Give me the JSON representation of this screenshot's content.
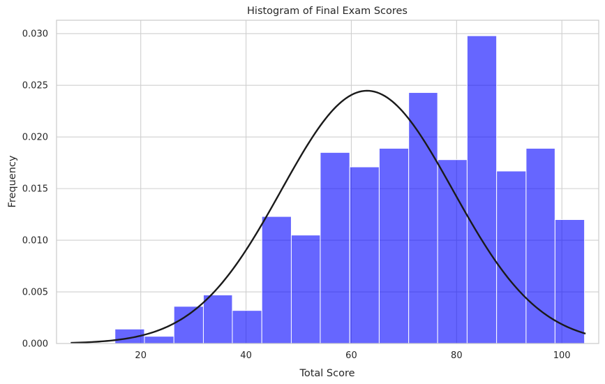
{
  "chart_data": {
    "type": "bar",
    "title": "Histogram of Final Exam Scores",
    "xlabel": "Total Score",
    "ylabel": "Frequency",
    "xlim": [
      4.0,
      107.0
    ],
    "ylim": [
      0.0,
      0.0313
    ],
    "xticks": [
      20,
      40,
      60,
      80,
      100
    ],
    "yticks": [
      0.0,
      0.005,
      0.01,
      0.015,
      0.02,
      0.025,
      0.03
    ],
    "ytick_labels": [
      "0.000",
      "0.005",
      "0.010",
      "0.015",
      "0.020",
      "0.025",
      "0.030"
    ],
    "grid": true,
    "histogram": {
      "bin_edges": [
        15.1,
        18.8,
        21.1,
        24.2,
        26.7,
        29.0,
        30.5,
        33.5,
        35.6,
        39.6,
        40.5,
        45.0,
        46.5,
        50.6,
        52.0,
        55.8,
        57.2,
        60.5,
        62.0,
        66.0,
        67.0,
        70.5,
        72.0,
        77.0,
        78.0,
        81.0,
        82.5,
        86.0,
        87.5,
        90.5,
        92.0,
        96.0,
        100.0
      ],
      "edges": [
        15.1,
        18.8,
        24.3,
        26.6,
        30.5,
        33.1,
        35.0,
        37.9,
        42.0,
        44.4,
        49.2,
        51.0,
        56.4,
        59.6,
        63.0,
        67.5,
        70.0,
        76.1,
        77.8,
        82.3,
        85.3,
        88.4,
        95.8,
        100.0
      ],
      "bin_left_edges": [
        15.2,
        21.2,
        26.7,
        32.3,
        37.9,
        43.4,
        49.0,
        54.6,
        60.1,
        65.7,
        71.2,
        76.8,
        82.4,
        87.9,
        93.5,
        99.1
      ],
      "bins": [
        {
          "from": 15.2,
          "to": 20.8,
          "density": 0.0014
        },
        {
          "from": 20.8,
          "to": 26.3,
          "density": 0.0007
        },
        {
          "from": 26.3,
          "to": 31.9,
          "density": 0.0036
        },
        {
          "from": 31.9,
          "to": 37.4,
          "density": 0.0047
        },
        {
          "from": 37.4,
          "to": 43.0,
          "density": 0.0032
        },
        {
          "from": 43.0,
          "to": 48.5,
          "density": 0.0123
        },
        {
          "from": 48.5,
          "to": 54.1,
          "density": 0.0105
        },
        {
          "from": 54.1,
          "to": 59.6,
          "density": 0.0185
        },
        {
          "from": 59.6,
          "to": 65.2,
          "density": 0.0171
        },
        {
          "from": 65.2,
          "to": 70.7,
          "density": 0.0189
        },
        {
          "from": 70.7,
          "to": 76.3,
          "density": 0.0243
        },
        {
          "from": 76.3,
          "to": 81.8,
          "density": 0.0178
        },
        {
          "from": 81.8,
          "to": 87.4,
          "density": 0.0298
        },
        {
          "from": 87.4,
          "to": 92.9,
          "density": 0.0167
        },
        {
          "from": 92.9,
          "to": 98.5,
          "density": 0.0189
        },
        {
          "from": 98.5,
          "to": 104.0,
          "density": 0.012
        }
      ],
      "counts_note": ""
    },
    "bars": [
      {
        "x0": 15.1,
        "x1": 20.7,
        "value": 0.0014
      },
      {
        "x0": 20.7,
        "x1": 26.3,
        "value": 0.0007
      },
      {
        "x0": 26.3,
        "x1": 31.9,
        "value": 0.0036
      },
      {
        "x0": 31.9,
        "x1": 37.4,
        "value": 0.0047
      },
      {
        "x0": 37.4,
        "x1": 43.0,
        "value": 0.0032
      },
      {
        "x0": 43.0,
        "x1": 48.6,
        "value": 0.0123
      },
      {
        "x0": 48.6,
        "x1": 54.1,
        "value": 0.0105
      },
      {
        "x0": 54.1,
        "x1": 59.7,
        "value": 0.0185
      },
      {
        "x0": 59.7,
        "x1": 65.3,
        "value": 0.0171
      },
      {
        "x0": 65.3,
        "x1": 70.9,
        "value": 0.0189
      },
      {
        "x0": 70.9,
        "x1": 76.4,
        "value": 0.0243
      },
      {
        "x0": 76.4,
        "x1": 82.0,
        "value": 0.0178
      },
      {
        "x0": 82.0,
        "x1": 87.6,
        "value": 0.0298
      },
      {
        "x0": 87.6,
        "x1": 93.2,
        "value": 0.0167
      },
      {
        "x0": 93.2,
        "x1": 98.7,
        "value": 0.0189
      },
      {
        "x0": 98.7,
        "x1": 104.3,
        "value": 0.012
      }
    ],
    "normal_fit": {
      "type": "line",
      "mean": 63.0,
      "std": 16.3,
      "x_range": [
        6.7,
        104.5
      ]
    },
    "colors": {
      "bars": "#0000ff",
      "bar_opacity": 0.6,
      "fit_line": "#1a1a1a",
      "grid": "#cfcfcf"
    }
  }
}
